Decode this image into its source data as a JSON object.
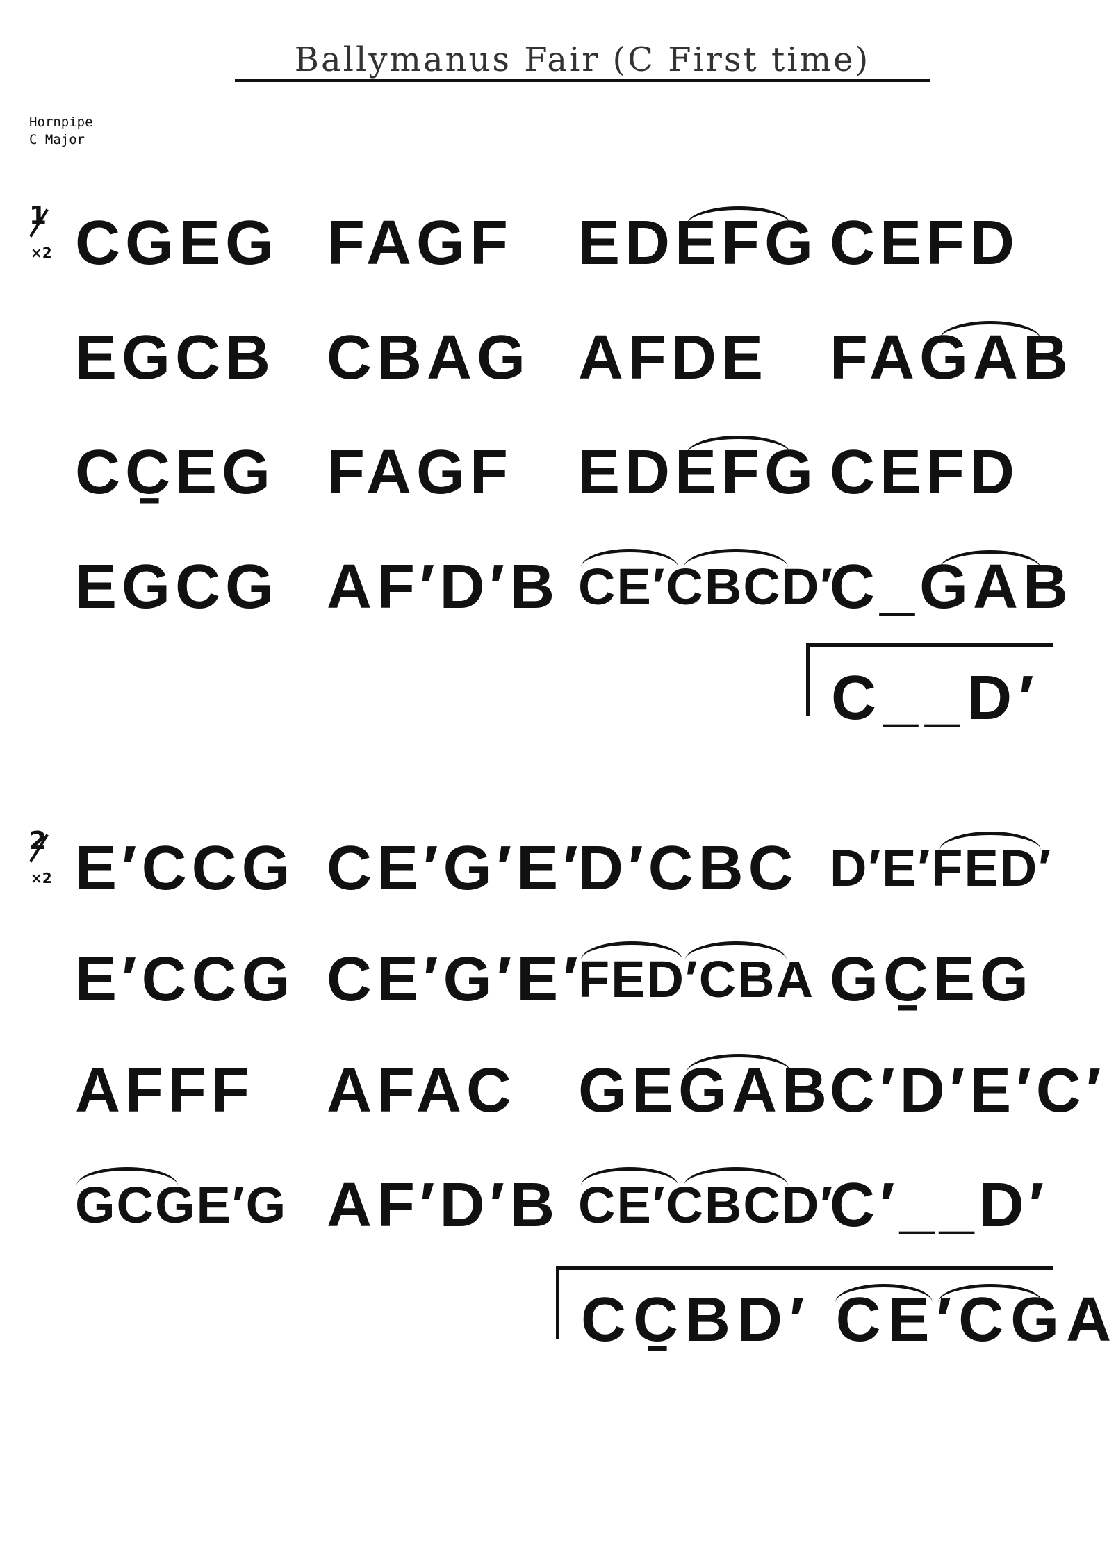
{
  "title": "Ballymanus Fair (C First time)",
  "meta": {
    "tune_type": "Hornpipe",
    "key": "C Major"
  },
  "parts": [
    {
      "number": "1",
      "repeat": "×2",
      "rows": [
        [
          "CGEG",
          "FAGF",
          "EDEFG",
          "CEFD"
        ],
        [
          "EGCB",
          "CBAG",
          "AFDE",
          "FAGAB"
        ],
        [
          "CC̱EG",
          "FAGF",
          "EDEFG",
          "CEFD"
        ],
        [
          "EGCG",
          "AF′D′B",
          "CE′CBCD′",
          "C_GAB"
        ]
      ],
      "ending": "C__D′"
    },
    {
      "number": "2",
      "repeat": "×2",
      "rows": [
        [
          "E′CCG",
          "CE′G′E′",
          "D′CBC",
          "D′E′FED′"
        ],
        [
          "E′CCG",
          "CE′G′E′",
          "FED′CBA",
          "GC̱EG"
        ],
        [
          "AFFF",
          "AFAC",
          "GEGAB",
          "C′D′E′C′"
        ],
        [
          "GCGE′G",
          "AF′D′B",
          "CE′CBCD′",
          "C′__D′"
        ]
      ],
      "ending": "CC̱BD′  CE′CGAB"
    }
  ]
}
